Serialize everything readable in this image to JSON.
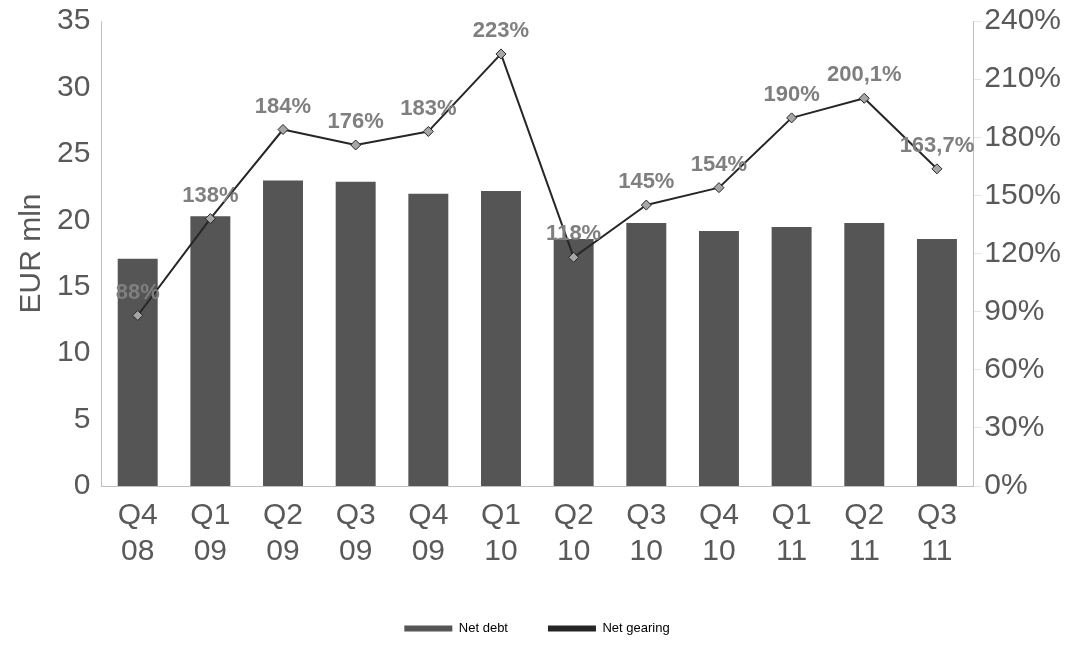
{
  "chart_data": {
    "type": "bar",
    "ylabel": "EUR mln",
    "categories": [
      "Q4 08",
      "Q1 09",
      "Q2 09",
      "Q3 09",
      "Q4 09",
      "Q1 10",
      "Q2 10",
      "Q3 10",
      "Q4 10",
      "Q1 11",
      "Q2 11",
      "Q3 11"
    ],
    "series": [
      {
        "name": "Net debt",
        "color": "#555555",
        "values": [
          17.1,
          20.3,
          23.0,
          22.9,
          22.0,
          22.2,
          18.6,
          19.8,
          19.2,
          19.5,
          19.8,
          18.6
        ]
      },
      {
        "name": "Net gearing",
        "type": "line",
        "axis": "y2",
        "color": "#262626",
        "marker": "diamond",
        "values": [
          88,
          138,
          184,
          176,
          183,
          223,
          118,
          145,
          154,
          190,
          200.1,
          163.7
        ],
        "value_labels": [
          "88%",
          "138%",
          "184%",
          "176%",
          "183%",
          "223%",
          "118%",
          "145%",
          "154%",
          "190%",
          "200,1%",
          "163,7%"
        ]
      }
    ],
    "ylim": [
      0,
      35
    ],
    "yticks": [
      0,
      5,
      10,
      15,
      20,
      25,
      30,
      35
    ],
    "y2lim": [
      0,
      240
    ],
    "y2ticks": [
      {
        "value": 0,
        "label": "0%"
      },
      {
        "value": 30,
        "label": "30%"
      },
      {
        "value": 60,
        "label": "60%"
      },
      {
        "value": 90,
        "label": "90%"
      },
      {
        "value": 120,
        "label": "120%"
      },
      {
        "value": 150,
        "label": "150%"
      },
      {
        "value": 180,
        "label": "180%"
      },
      {
        "value": 210,
        "label": "210%"
      },
      {
        "value": 240,
        "label": "240%"
      }
    ],
    "grid": false,
    "legend": "bottom"
  }
}
